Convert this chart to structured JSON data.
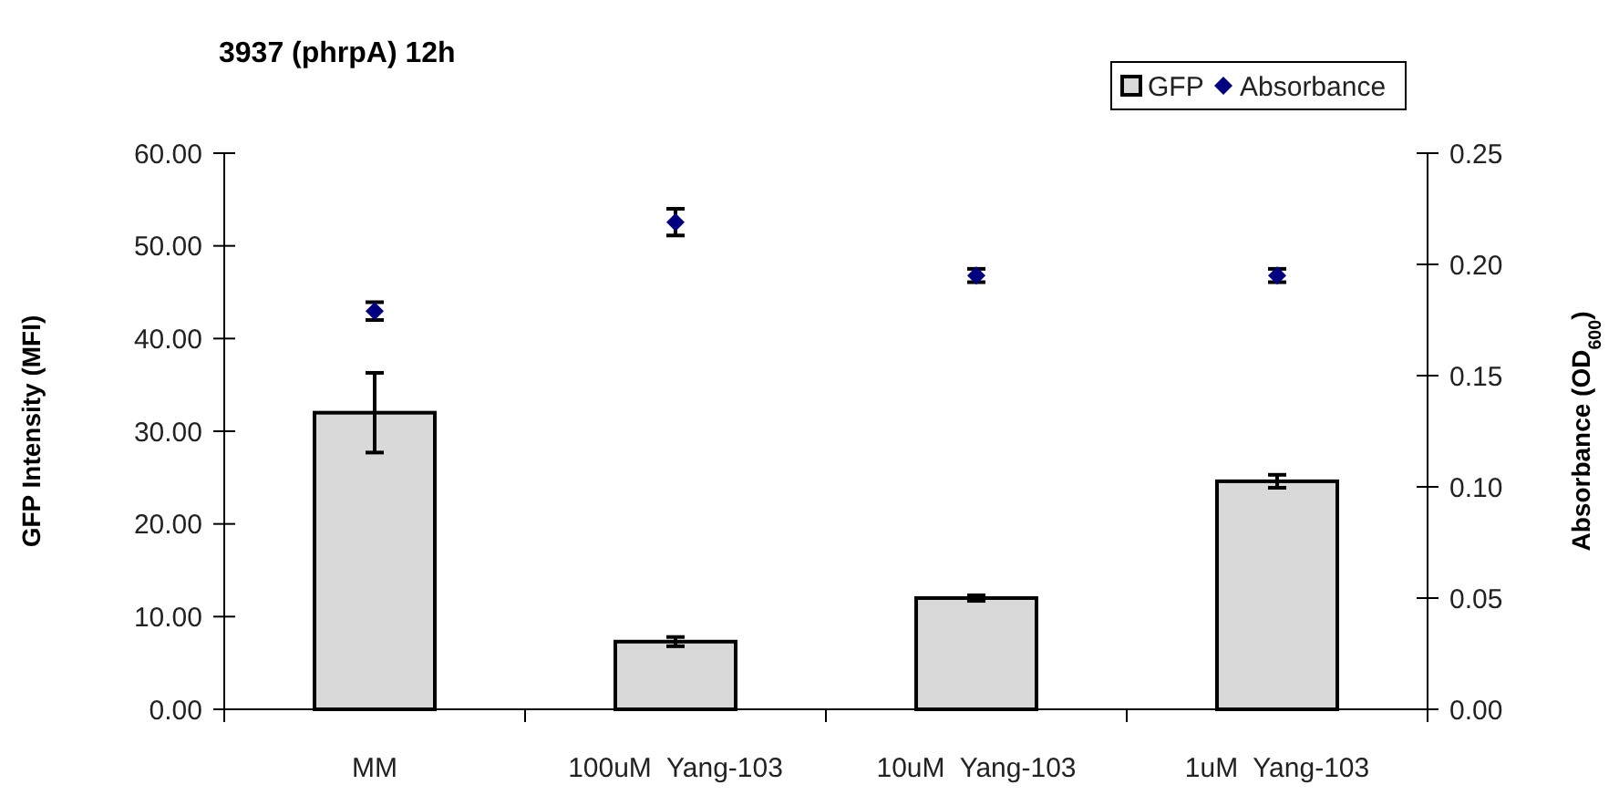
{
  "chart_data": {
    "type": "bar",
    "title": "3937 (phrpA) 12h",
    "ylabel": "GFP Intensity (MFI)",
    "y2label": "Absorbance  (OD$_{600}$)",
    "categories": [
      "MM",
      "100uM  Yang-103",
      "10uM  Yang-103",
      "1uM  Yang-103"
    ],
    "series": [
      {
        "name": "GFP",
        "color": "#d9d9d9",
        "values": [
          32.0,
          7.3,
          12.0,
          24.6
        ],
        "errors": [
          4.3,
          0.5,
          0.3,
          0.7
        ]
      },
      {
        "name": "Absorbance",
        "type": "scatter",
        "axis": "y2",
        "marker": "diamond",
        "color": "#000080",
        "values": [
          0.179,
          0.219,
          0.195,
          0.195
        ],
        "errors": [
          0.004,
          0.006,
          0.003,
          0.003
        ]
      }
    ],
    "ylim": [
      0,
      60
    ],
    "yticks": [
      {
        "value": 0,
        "label": "0.00"
      },
      {
        "value": 10,
        "label": "10.00"
      },
      {
        "value": 20,
        "label": "20.00"
      },
      {
        "value": 30,
        "label": "30.00"
      },
      {
        "value": 40,
        "label": "40.00"
      },
      {
        "value": 50,
        "label": "50.00"
      },
      {
        "value": 60,
        "label": "60.00"
      }
    ],
    "y2lim": [
      0,
      0.25
    ],
    "y2ticks": [
      {
        "value": 0,
        "label": "0.00"
      },
      {
        "value": 0.05,
        "label": "0.05"
      },
      {
        "value": 0.1,
        "label": "0.10"
      },
      {
        "value": 0.15,
        "label": "0.15"
      },
      {
        "value": 0.2,
        "label": "0.20"
      },
      {
        "value": 0.25,
        "label": "0.25"
      }
    ],
    "grid": false,
    "legend": "top right"
  }
}
